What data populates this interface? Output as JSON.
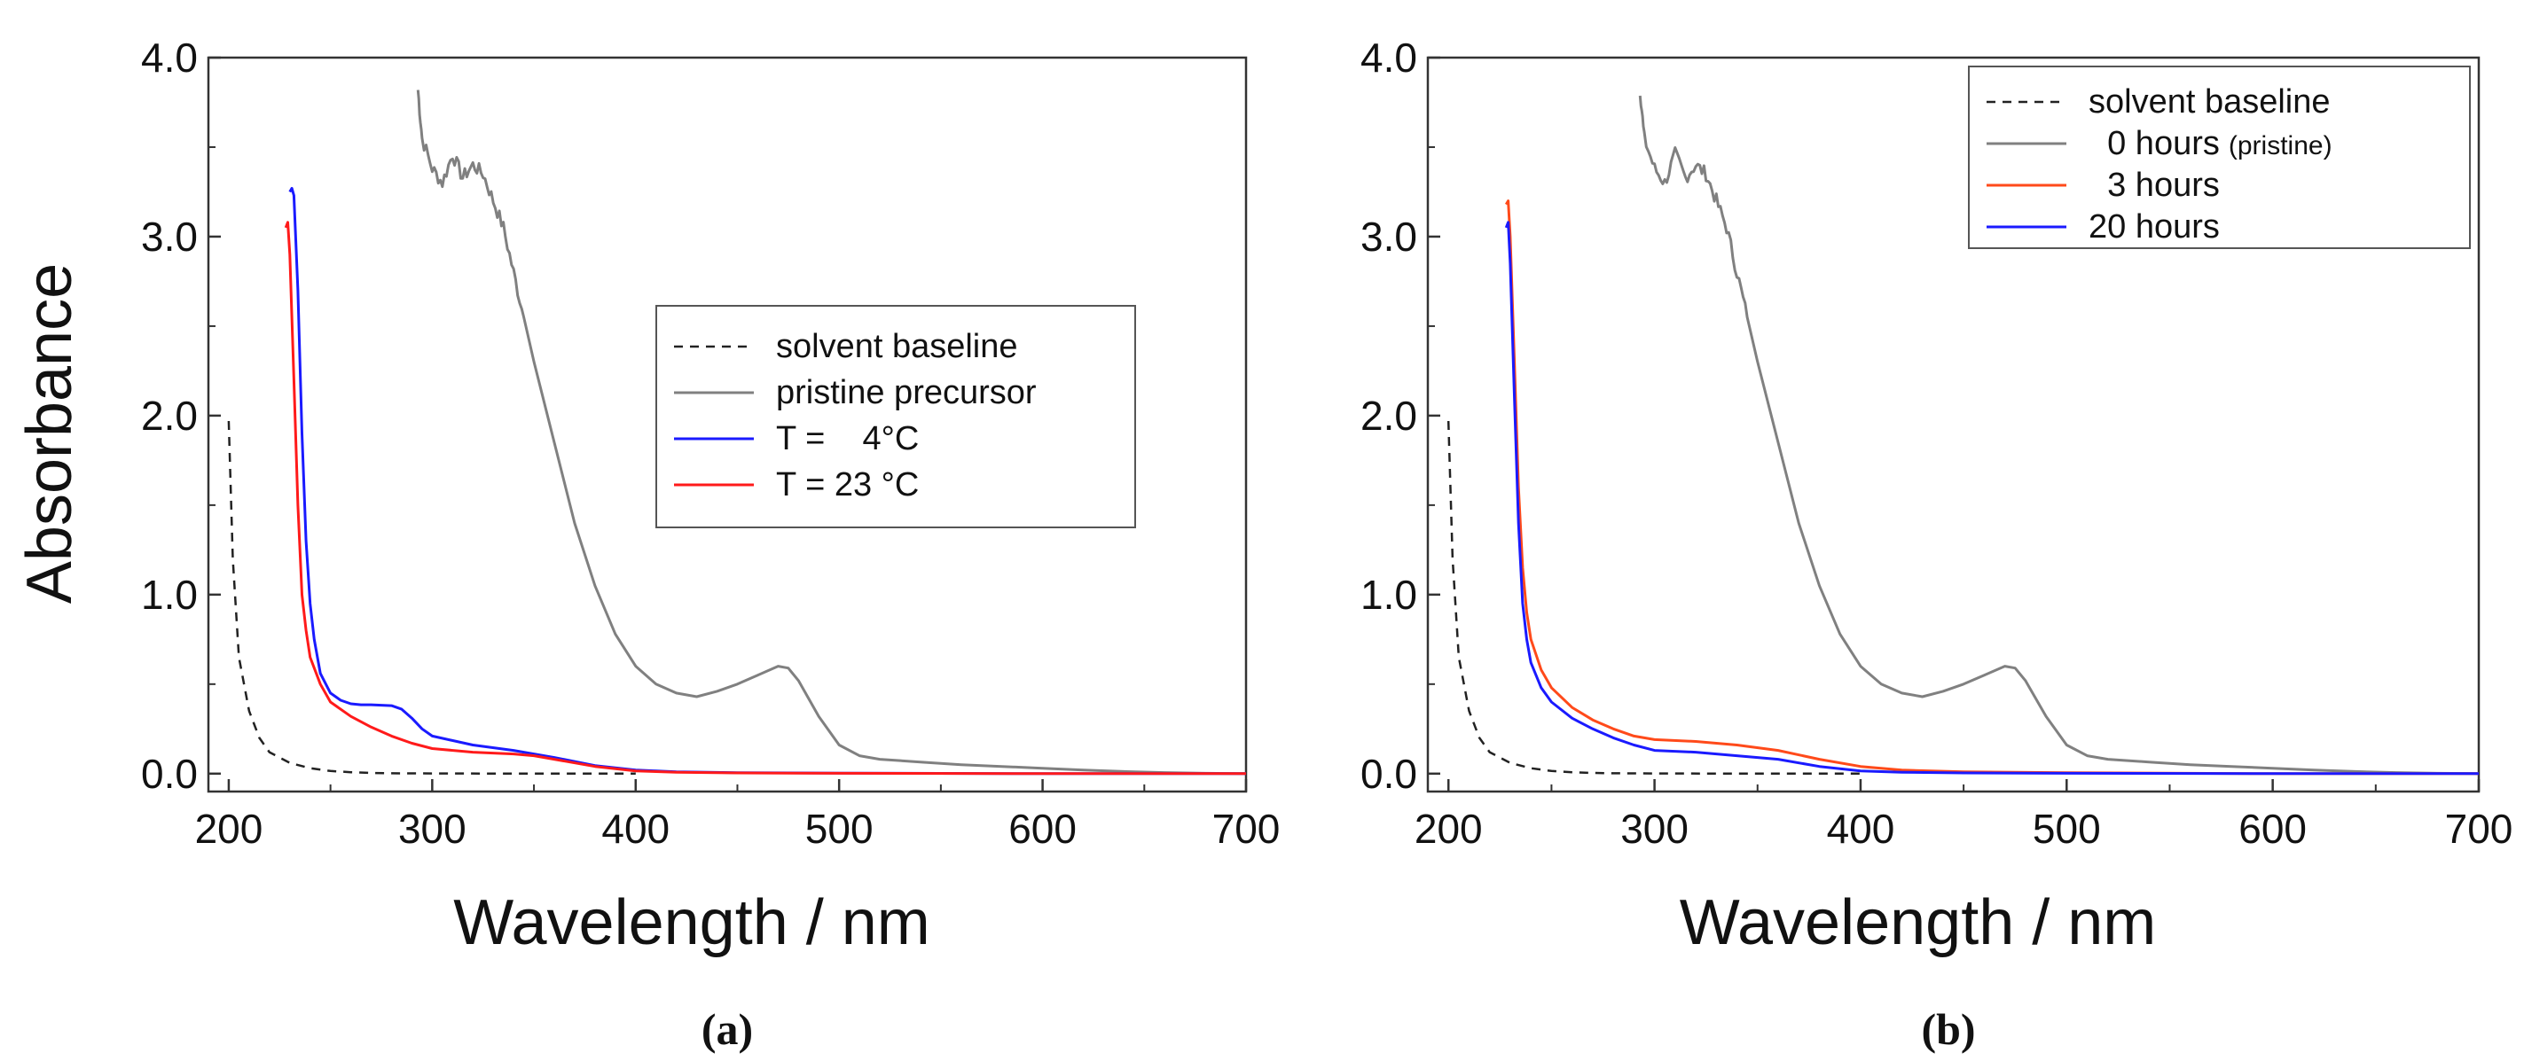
{
  "chart_data": [
    {
      "type": "line",
      "panel_label": "(a)",
      "xlabel": "Wavelength / nm",
      "ylabel": "Absorbance",
      "xlim": [
        190,
        700
      ],
      "ylim": [
        -0.1,
        4.0
      ],
      "xticks": [
        200,
        300,
        400,
        500,
        600,
        700
      ],
      "yticks": [
        0.0,
        1.0,
        2.0,
        3.0,
        4.0
      ],
      "xtick_labels": [
        "200",
        "300",
        "400",
        "500",
        "600",
        "700"
      ],
      "ytick_labels": [
        "0.0",
        "1.0",
        "2.0",
        "3.0",
        "4.0"
      ],
      "grid": false,
      "legend": {
        "placement": "center-right",
        "boxed": true
      },
      "series": [
        {
          "name": "solvent baseline",
          "color": "#222222",
          "dash": "dashed",
          "x": [
            200,
            202,
            205,
            210,
            215,
            220,
            230,
            240,
            250,
            260,
            270,
            280,
            300,
            350,
            400
          ],
          "y": [
            1.97,
            1.2,
            0.65,
            0.35,
            0.2,
            0.12,
            0.06,
            0.03,
            0.015,
            0.008,
            0.004,
            0.002,
            0.001,
            0.0,
            0.0
          ]
        },
        {
          "name": "pristine precursor",
          "color": "#808080",
          "dash": "solid",
          "noisy": true,
          "x": [
            293,
            295,
            300,
            305,
            310,
            315,
            320,
            325,
            330,
            335,
            340,
            345,
            350,
            360,
            370,
            380,
            390,
            400,
            410,
            420,
            430,
            440,
            450,
            460,
            470,
            475,
            480,
            490,
            500,
            510,
            520,
            540,
            560,
            580,
            600,
            620,
            640,
            660,
            680,
            700
          ],
          "y": [
            3.82,
            3.55,
            3.38,
            3.3,
            3.46,
            3.33,
            3.4,
            3.35,
            3.2,
            3.05,
            2.8,
            2.55,
            2.3,
            1.85,
            1.4,
            1.05,
            0.78,
            0.6,
            0.5,
            0.45,
            0.43,
            0.46,
            0.5,
            0.55,
            0.6,
            0.59,
            0.52,
            0.32,
            0.16,
            0.1,
            0.08,
            0.065,
            0.05,
            0.04,
            0.03,
            0.02,
            0.012,
            0.006,
            0.002,
            0.0
          ]
        },
        {
          "name": "T =    4°C",
          "color": "#1a1aff",
          "dash": "solid",
          "x": [
            230,
            231,
            232,
            234,
            236,
            238,
            240,
            242,
            245,
            250,
            255,
            260,
            265,
            270,
            280,
            285,
            290,
            295,
            300,
            320,
            340,
            360,
            380,
            400,
            420,
            450,
            500,
            600,
            700
          ],
          "y": [
            3.25,
            3.27,
            3.23,
            2.7,
            1.9,
            1.3,
            0.95,
            0.75,
            0.56,
            0.45,
            0.41,
            0.39,
            0.385,
            0.385,
            0.38,
            0.36,
            0.31,
            0.25,
            0.21,
            0.16,
            0.13,
            0.09,
            0.045,
            0.02,
            0.01,
            0.005,
            0.003,
            0.0,
            0.0
          ]
        },
        {
          "name": "T = 23 °C",
          "color": "#ff1a1a",
          "dash": "solid",
          "x": [
            228,
            229,
            230,
            232,
            234,
            236,
            238,
            240,
            245,
            250,
            260,
            270,
            280,
            290,
            300,
            320,
            340,
            350,
            360,
            380,
            400,
            420,
            450,
            500,
            600,
            700
          ],
          "y": [
            3.05,
            3.08,
            2.9,
            2.2,
            1.5,
            1.0,
            0.8,
            0.65,
            0.5,
            0.4,
            0.32,
            0.26,
            0.21,
            0.17,
            0.14,
            0.12,
            0.11,
            0.1,
            0.08,
            0.04,
            0.015,
            0.008,
            0.004,
            0.002,
            0.0,
            0.0
          ]
        }
      ]
    },
    {
      "type": "line",
      "panel_label": "(b)",
      "xlabel": "Wavelength / nm",
      "ylabel": "",
      "xlim": [
        190,
        700
      ],
      "ylim": [
        -0.1,
        4.0
      ],
      "xticks": [
        200,
        300,
        400,
        500,
        600,
        700
      ],
      "yticks": [
        0.0,
        1.0,
        2.0,
        3.0,
        4.0
      ],
      "xtick_labels": [
        "200",
        "300",
        "400",
        "500",
        "600",
        "700"
      ],
      "ytick_labels": [
        "0.0",
        "1.0",
        "2.0",
        "3.0",
        "4.0"
      ],
      "grid": false,
      "legend": {
        "placement": "top-right",
        "boxed": true
      },
      "series": [
        {
          "name": "solvent baseline",
          "note": "",
          "color": "#222222",
          "dash": "dashed",
          "x": [
            200,
            202,
            205,
            210,
            215,
            220,
            230,
            240,
            250,
            260,
            270,
            280,
            300,
            350,
            400
          ],
          "y": [
            1.97,
            1.2,
            0.65,
            0.35,
            0.2,
            0.12,
            0.06,
            0.03,
            0.015,
            0.008,
            0.004,
            0.002,
            0.001,
            0.0,
            0.0
          ]
        },
        {
          "name": "  0 hours",
          "note": "(pristine)",
          "color": "#808080",
          "dash": "solid",
          "noisy": true,
          "x": [
            293,
            295,
            300,
            305,
            310,
            315,
            320,
            325,
            330,
            335,
            340,
            345,
            350,
            360,
            370,
            380,
            390,
            400,
            410,
            420,
            430,
            440,
            450,
            460,
            470,
            475,
            480,
            490,
            500,
            510,
            520,
            540,
            560,
            580,
            600,
            620,
            640,
            660,
            680,
            700
          ],
          "y": [
            3.82,
            3.55,
            3.38,
            3.3,
            3.46,
            3.33,
            3.4,
            3.35,
            3.2,
            3.05,
            2.8,
            2.55,
            2.3,
            1.85,
            1.4,
            1.05,
            0.78,
            0.6,
            0.5,
            0.45,
            0.43,
            0.46,
            0.5,
            0.55,
            0.6,
            0.59,
            0.52,
            0.32,
            0.16,
            0.1,
            0.08,
            0.065,
            0.05,
            0.04,
            0.03,
            0.02,
            0.012,
            0.006,
            0.002,
            0.0
          ]
        },
        {
          "name": "  3 hours",
          "note": "",
          "color": "#ff4a1a",
          "dash": "solid",
          "x": [
            228,
            229,
            230,
            232,
            234,
            236,
            238,
            240,
            245,
            250,
            260,
            270,
            280,
            290,
            300,
            320,
            340,
            360,
            380,
            400,
            420,
            450,
            500,
            600,
            700
          ],
          "y": [
            3.18,
            3.2,
            3.0,
            2.3,
            1.6,
            1.15,
            0.9,
            0.75,
            0.58,
            0.48,
            0.37,
            0.3,
            0.25,
            0.21,
            0.19,
            0.18,
            0.16,
            0.13,
            0.08,
            0.04,
            0.02,
            0.01,
            0.005,
            0.0,
            0.0
          ]
        },
        {
          "name": "20 hours",
          "note": "",
          "color": "#1a1aff",
          "dash": "solid",
          "x": [
            228,
            229,
            230,
            232,
            234,
            236,
            238,
            240,
            245,
            250,
            260,
            270,
            280,
            290,
            300,
            320,
            340,
            360,
            380,
            400,
            420,
            450,
            500,
            600,
            700
          ],
          "y": [
            3.05,
            3.08,
            2.85,
            2.1,
            1.4,
            0.95,
            0.75,
            0.62,
            0.48,
            0.4,
            0.31,
            0.25,
            0.2,
            0.16,
            0.13,
            0.12,
            0.1,
            0.08,
            0.04,
            0.015,
            0.008,
            0.004,
            0.002,
            0.0,
            0.0
          ]
        }
      ]
    }
  ]
}
